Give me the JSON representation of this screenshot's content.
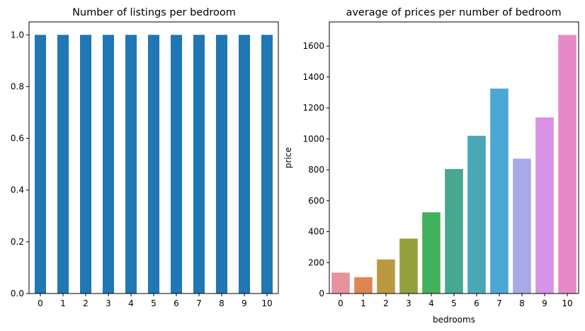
{
  "chart_data": [
    {
      "type": "bar",
      "title": "Number of listings per bedroom",
      "xlabel": "",
      "ylabel": "",
      "categories": [
        "0",
        "1",
        "2",
        "3",
        "4",
        "5",
        "6",
        "7",
        "8",
        "9",
        "10"
      ],
      "values": [
        1,
        1,
        1,
        1,
        1,
        1,
        1,
        1,
        1,
        1,
        1
      ],
      "ylim": [
        0,
        1.05
      ],
      "yticks": [
        "0.0",
        "0.2",
        "0.4",
        "0.6",
        "0.8",
        "1.0"
      ],
      "grid": false,
      "color": "#1f77b4"
    },
    {
      "type": "bar",
      "title": "average of prices per number of bedroom",
      "xlabel": "bedrooms",
      "ylabel": "price",
      "categories": [
        "0",
        "1",
        "2",
        "3",
        "4",
        "5",
        "6",
        "7",
        "8",
        "9",
        "10"
      ],
      "values": [
        135,
        105,
        220,
        355,
        525,
        805,
        1020,
        1325,
        872,
        1138,
        1672
      ],
      "ylim": [
        0,
        1756
      ],
      "yticks": [
        "0",
        "200",
        "400",
        "600",
        "800",
        "1000",
        "1200",
        "1400",
        "1600"
      ],
      "grid": false,
      "colors": [
        "#e8929e",
        "#dd8651",
        "#b99a3f",
        "#93a03d",
        "#43b05c",
        "#48a790",
        "#4aa8b6",
        "#4ba8d5",
        "#a8aae7",
        "#d692e4",
        "#e68ac7"
      ]
    }
  ]
}
